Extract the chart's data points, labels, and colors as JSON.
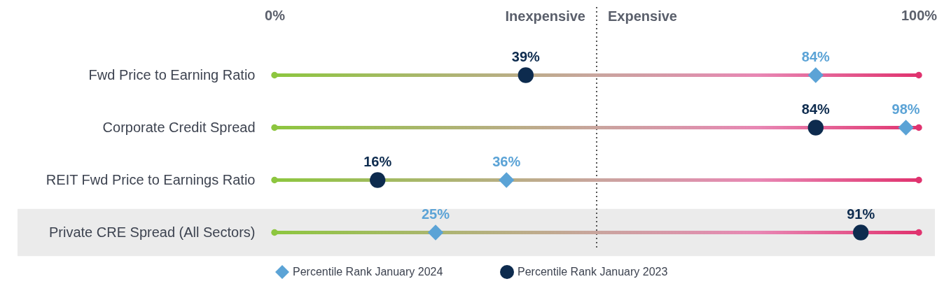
{
  "chart_data": {
    "type": "scatter",
    "orientation": "horizontal",
    "categories": [
      "Fwd Price to Earning Ratio",
      "Corporate Credit Spread",
      "REIT Fwd Price to Earnings Ratio",
      "Private CRE Spread (All Sectors)"
    ],
    "series": [
      {
        "type": "bar",
        "color": "#8dc63f",
        "values": [
          100,
          100,
          100,
          100
        ]
      },
      {
        "name": "Percentile Rank January 2024",
        "color": "#5ba3d6",
        "marker": "diamond",
        "values": [
          84,
          98,
          36,
          25
        ],
        "value_labels": [
          "84%",
          "98%",
          "36%",
          "25%"
        ]
      },
      {
        "name": "Percentile Rank January 2023",
        "color": "#0d2b4e",
        "marker": "circle",
        "values": [
          39,
          84,
          16,
          91
        ],
        "value_labels": [
          "39%",
          "84%",
          "16%",
          "91%"
        ]
      }
    ],
    "xlim": [
      0,
      100
    ],
    "xticks": [
      {
        "value": 0,
        "label": "0%"
      },
      {
        "value": 100,
        "label": "100%"
      }
    ],
    "ref_lines": [
      {
        "axis": "x",
        "value": 50,
        "line_style": "dotted",
        "color": "#555555"
      }
    ],
    "bands": [
      {
        "axis": "y",
        "from": "Private CRE Spread (All Sectors)",
        "to": "Private CRE Spread (All Sectors)",
        "color": "#ebebeb"
      }
    ],
    "annotations": [
      "Inexpensive",
      "Expensive"
    ],
    "legend": "bottom"
  }
}
